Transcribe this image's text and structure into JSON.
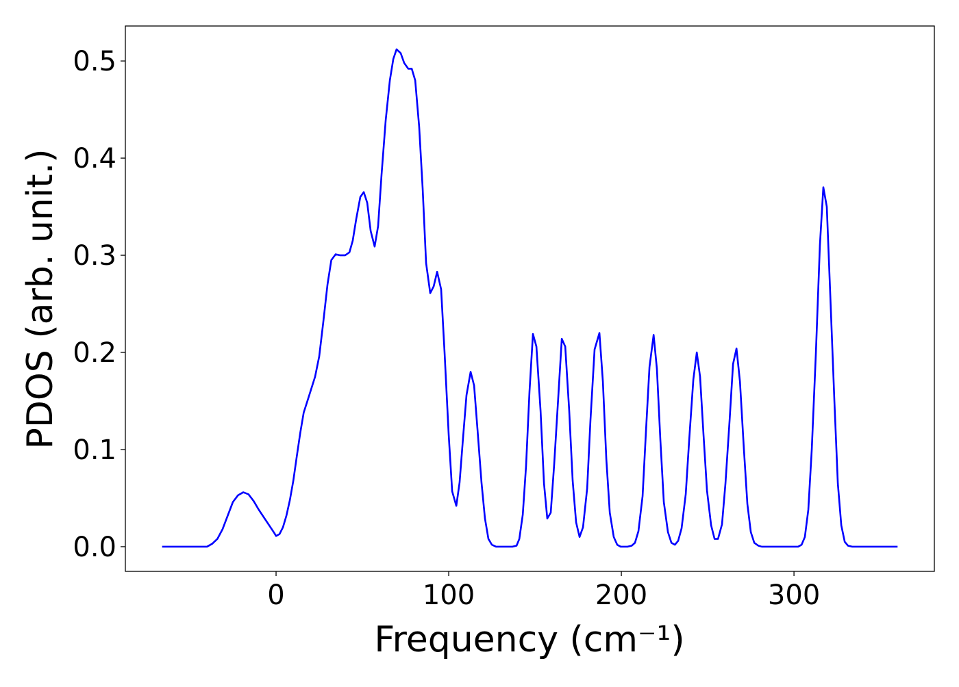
{
  "chart_data": {
    "type": "line",
    "xlabel": "Frequency (cm⁻¹)",
    "ylabel": "PDOS (arb. unit.)",
    "color": "#0000ff",
    "x": [
      -66,
      -40,
      -37,
      -34,
      -31,
      -28,
      -25,
      -22,
      -19,
      -16,
      -13,
      -10,
      -7,
      -4,
      -1,
      0,
      2,
      4,
      6,
      8,
      10,
      12,
      14,
      16,
      18.7,
      22.6,
      25,
      27.4,
      29.8,
      32,
      34.5,
      37,
      40,
      42.5,
      44.4,
      46.4,
      48.8,
      50.8,
      52.8,
      54.8,
      57.1,
      59.1,
      61.1,
      63.5,
      65.9,
      67.9,
      69.8,
      72.2,
      74.2,
      76.6,
      78.6,
      80.6,
      82.9,
      84.9,
      86.9,
      89.3,
      91.3,
      93.3,
      95.6,
      97.6,
      100,
      102,
      104.4,
      106.3,
      108.3,
      110.3,
      112.7,
      114.7,
      116.7,
      119,
      121,
      123,
      125,
      127.4,
      136.9,
      139.3,
      140.9,
      142.9,
      144.8,
      146.8,
      148.8,
      150.8,
      153.2,
      155.2,
      157.1,
      159.1,
      161.1,
      163.5,
      165.5,
      167.5,
      169.8,
      171.8,
      173.8,
      175.8,
      177.8,
      180.2,
      182.1,
      184.5,
      187.3,
      189.3,
      191.3,
      193.3,
      195.6,
      197.6,
      199.6,
      203.6,
      206,
      207.9,
      209.9,
      212.3,
      214.3,
      216.3,
      218.7,
      220.6,
      222.6,
      224.6,
      227,
      229,
      231,
      232.9,
      234.9,
      237.3,
      239.3,
      241.7,
      243.7,
      245.6,
      247.6,
      249.6,
      252,
      254,
      256,
      258.3,
      260.3,
      262.7,
      264.7,
      266.7,
      268.7,
      271,
      273,
      275,
      277,
      279.4,
      281.3,
      302.4,
      304.4,
      306.3,
      308.3,
      310.3,
      312.7,
      315,
      317,
      319,
      321,
      323.4,
      325.4,
      327.4,
      329.4,
      331.3,
      333.7,
      360
    ],
    "values": [
      0,
      0,
      0.003,
      0.008,
      0.018,
      0.032,
      0.046,
      0.053,
      0.056,
      0.054,
      0.047,
      0.038,
      0.03,
      0.022,
      0.014,
      0.011,
      0.013,
      0.02,
      0.032,
      0.048,
      0.068,
      0.093,
      0.117,
      0.138,
      0.153,
      0.175,
      0.196,
      0.232,
      0.27,
      0.295,
      0.301,
      0.3,
      0.3,
      0.303,
      0.315,
      0.337,
      0.36,
      0.365,
      0.354,
      0.325,
      0.309,
      0.33,
      0.383,
      0.439,
      0.48,
      0.502,
      0.512,
      0.508,
      0.498,
      0.492,
      0.492,
      0.48,
      0.432,
      0.369,
      0.292,
      0.261,
      0.268,
      0.283,
      0.265,
      0.2,
      0.115,
      0.057,
      0.042,
      0.066,
      0.112,
      0.156,
      0.18,
      0.166,
      0.12,
      0.066,
      0.029,
      0.008,
      0.002,
      0,
      0,
      0.001,
      0.008,
      0.033,
      0.083,
      0.16,
      0.219,
      0.206,
      0.14,
      0.065,
      0.029,
      0.035,
      0.085,
      0.155,
      0.214,
      0.206,
      0.14,
      0.068,
      0.025,
      0.01,
      0.02,
      0.06,
      0.13,
      0.203,
      0.22,
      0.17,
      0.09,
      0.035,
      0.01,
      0.002,
      0,
      0,
      0.001,
      0.004,
      0.016,
      0.052,
      0.12,
      0.185,
      0.218,
      0.183,
      0.11,
      0.046,
      0.015,
      0.004,
      0.002,
      0.006,
      0.019,
      0.054,
      0.11,
      0.172,
      0.2,
      0.175,
      0.115,
      0.058,
      0.022,
      0.008,
      0.008,
      0.023,
      0.065,
      0.13,
      0.188,
      0.204,
      0.17,
      0.1,
      0.044,
      0.015,
      0.004,
      0.001,
      0,
      0,
      0.002,
      0.01,
      0.038,
      0.1,
      0.2,
      0.31,
      0.37,
      0.35,
      0.26,
      0.15,
      0.065,
      0.022,
      0.005,
      0.001,
      0,
      0
    ],
    "xlim": [
      -87.3,
      381.3
    ],
    "ylim": [
      -0.0254,
      0.536
    ],
    "xticks": [
      0,
      100,
      200,
      300
    ],
    "yticks": [
      {
        "value": 0,
        "label": "0.0"
      },
      0.1,
      0.2,
      0.3,
      0.4,
      0.5
    ]
  }
}
